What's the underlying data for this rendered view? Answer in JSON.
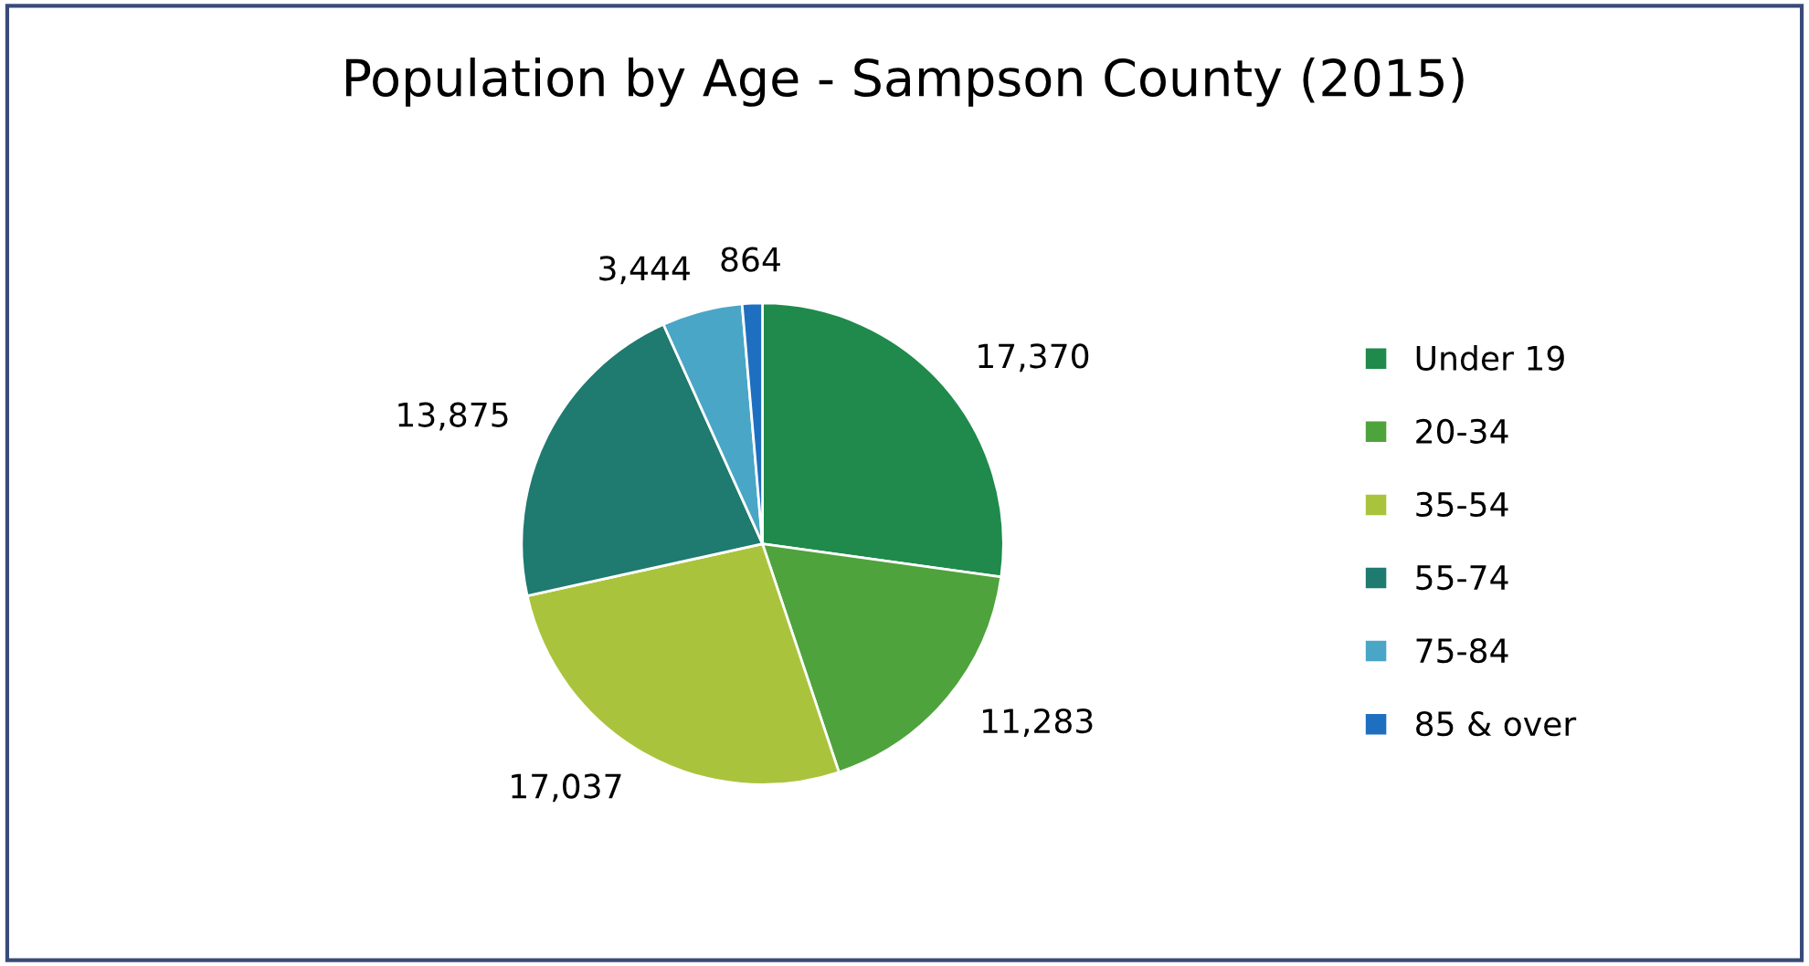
{
  "chart_data": {
    "type": "pie",
    "title": "Population by Age - Sampson County (2015)",
    "categories": [
      "Under 19",
      "20-34",
      "35-54",
      "55-74",
      "75-84",
      "85 & over"
    ],
    "values": [
      17370,
      11283,
      17037,
      13875,
      3444,
      864
    ],
    "colors": [
      "#1f8a4c",
      "#4fa33c",
      "#a9c43c",
      "#1f7a70",
      "#4aa6c6",
      "#1f6fc0"
    ],
    "value_labels": [
      "17,370",
      "11,283",
      "17,037",
      "13,875",
      "3,444",
      "864"
    ],
    "legend": "right"
  }
}
